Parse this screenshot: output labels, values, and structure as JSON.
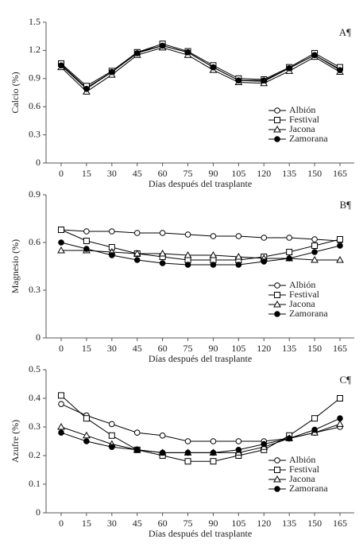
{
  "chart_data": [
    {
      "type": "line",
      "annotation": "A¶",
      "y_label": "Calcio (%)",
      "x_label": "Días después del trasplante",
      "categories": [
        "0",
        "15",
        "30",
        "45",
        "60",
        "75",
        "90",
        "105",
        "120",
        "135",
        "150",
        "165"
      ],
      "ylim": [
        0,
        1.5
      ],
      "yticks": [
        0,
        0.3,
        0.6,
        0.9,
        1.2,
        1.5
      ],
      "grid": false,
      "legend": "lower-right",
      "series": [
        {
          "name": "Albión",
          "color": "#000000",
          "marker": "circle-open",
          "values": [
            1.05,
            0.8,
            0.97,
            1.18,
            1.25,
            1.18,
            1.02,
            0.88,
            0.87,
            1.01,
            1.15,
            1.0
          ]
        },
        {
          "name": "Festival",
          "color": "#000000",
          "marker": "square-open",
          "values": [
            1.06,
            0.82,
            0.98,
            1.18,
            1.27,
            1.19,
            1.04,
            0.9,
            0.89,
            1.02,
            1.17,
            1.02
          ]
        },
        {
          "name": "Jacona",
          "color": "#000000",
          "marker": "triangle-open",
          "values": [
            1.02,
            0.76,
            0.94,
            1.15,
            1.23,
            1.15,
            0.99,
            0.86,
            0.85,
            0.98,
            1.13,
            0.97
          ]
        },
        {
          "name": "Zamorana",
          "color": "#000000",
          "marker": "circle-filled",
          "values": [
            1.04,
            0.79,
            0.97,
            1.17,
            1.25,
            1.18,
            1.02,
            0.88,
            0.88,
            1.01,
            1.15,
            0.99
          ]
        }
      ]
    },
    {
      "type": "line",
      "annotation": "B¶",
      "y_label": "Magnesio (%)",
      "x_label": "Días después del trasplante",
      "categories": [
        "0",
        "15",
        "30",
        "45",
        "60",
        "75",
        "90",
        "105",
        "120",
        "135",
        "150",
        "165"
      ],
      "ylim": [
        0,
        0.9
      ],
      "yticks": [
        0,
        0.3,
        0.6,
        0.9
      ],
      "grid": false,
      "legend": "lower-right",
      "series": [
        {
          "name": "Albión",
          "color": "#000000",
          "marker": "circle-open",
          "values": [
            0.68,
            0.67,
            0.67,
            0.66,
            0.66,
            0.65,
            0.64,
            0.64,
            0.63,
            0.63,
            0.62,
            0.61
          ]
        },
        {
          "name": "Festival",
          "color": "#000000",
          "marker": "square-open",
          "values": [
            0.68,
            0.61,
            0.57,
            0.53,
            0.51,
            0.49,
            0.49,
            0.49,
            0.51,
            0.54,
            0.58,
            0.62
          ]
        },
        {
          "name": "Jacona",
          "color": "#000000",
          "marker": "triangle-open",
          "values": [
            0.55,
            0.55,
            0.54,
            0.53,
            0.53,
            0.52,
            0.52,
            0.51,
            0.5,
            0.5,
            0.49,
            0.49
          ]
        },
        {
          "name": "Zamorana",
          "color": "#000000",
          "marker": "circle-filled",
          "values": [
            0.6,
            0.56,
            0.52,
            0.49,
            0.47,
            0.46,
            0.46,
            0.46,
            0.48,
            0.5,
            0.54,
            0.58
          ]
        }
      ]
    },
    {
      "type": "line",
      "annotation": "C¶",
      "y_label": "Azufre (%)",
      "x_label": "Días después del trasplante",
      "categories": [
        "0",
        "15",
        "30",
        "45",
        "60",
        "75",
        "90",
        "105",
        "120",
        "135",
        "150",
        "165"
      ],
      "ylim": [
        0,
        0.5
      ],
      "yticks": [
        0,
        0.1,
        0.2,
        0.3,
        0.4,
        0.5
      ],
      "grid": false,
      "legend": "lower-right",
      "series": [
        {
          "name": "Albión",
          "color": "#000000",
          "marker": "circle-open",
          "values": [
            0.38,
            0.34,
            0.31,
            0.28,
            0.27,
            0.25,
            0.25,
            0.25,
            0.25,
            0.26,
            0.28,
            0.3
          ]
        },
        {
          "name": "Festival",
          "color": "#000000",
          "marker": "square-open",
          "values": [
            0.41,
            0.33,
            0.27,
            0.22,
            0.2,
            0.18,
            0.18,
            0.2,
            0.22,
            0.27,
            0.33,
            0.4
          ]
        },
        {
          "name": "Jacona",
          "color": "#000000",
          "marker": "triangle-open",
          "values": [
            0.3,
            0.27,
            0.24,
            0.22,
            0.21,
            0.21,
            0.21,
            0.21,
            0.23,
            0.26,
            0.28,
            0.31
          ]
        },
        {
          "name": "Zamorana",
          "color": "#000000",
          "marker": "circle-filled",
          "values": [
            0.28,
            0.25,
            0.23,
            0.22,
            0.21,
            0.21,
            0.21,
            0.22,
            0.24,
            0.26,
            0.29,
            0.33
          ]
        }
      ]
    }
  ]
}
